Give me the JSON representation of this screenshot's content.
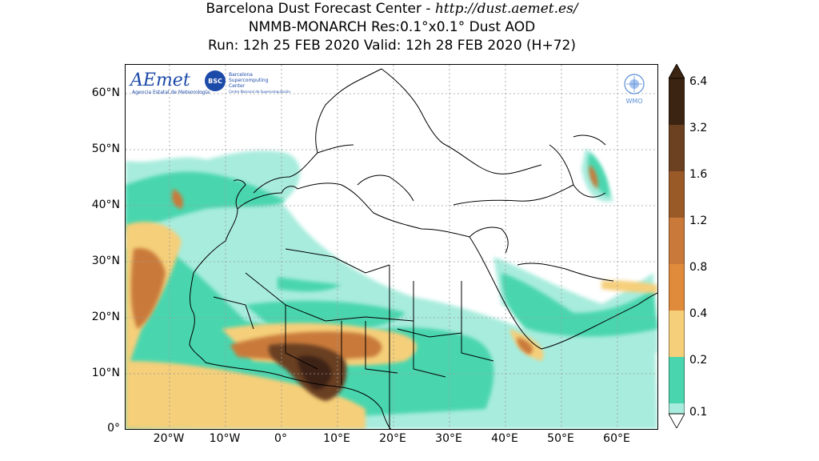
{
  "header": {
    "line1_prefix": "Barcelona Dust Forecast Center - ",
    "line1_url": "http://dust.aemet.es/",
    "line2": "NMMB-MONARCH   Res:0.1°x0.1°   Dust AOD",
    "line3": "Run: 12h 25 FEB 2020   Valid: 12h 28 FEB 2020 (H+72)"
  },
  "logos": {
    "aemet_name": "AEmet",
    "aemet_sub": "Agencia Estatal de Meteorología",
    "bsc_badge": "BSC",
    "bsc_line1": "Barcelona",
    "bsc_line2": "Supercomputing",
    "bsc_line3": "Center",
    "bsc_line4": "Centro Nacional de Supercomputación",
    "wmo": "WMO"
  },
  "axes": {
    "lat_labels": [
      "60°N",
      "50°N",
      "40°N",
      "30°N",
      "20°N",
      "10°N",
      "0°"
    ],
    "lon_labels": [
      "20°W",
      "10°W",
      "0°",
      "10°E",
      "20°E",
      "30°E",
      "40°E",
      "50°E",
      "60°E"
    ]
  },
  "colorbar": {
    "ticks": [
      "6.4",
      "3.2",
      "1.6",
      "1.2",
      "0.8",
      "0.4",
      "0.2",
      "0.1"
    ],
    "colors": [
      "#3c2412",
      "#6b4122",
      "#9a5a28",
      "#c97a3a",
      "#e08a3c",
      "#f5cf7a",
      "#49d6ae",
      "#a8ecdd"
    ]
  }
}
